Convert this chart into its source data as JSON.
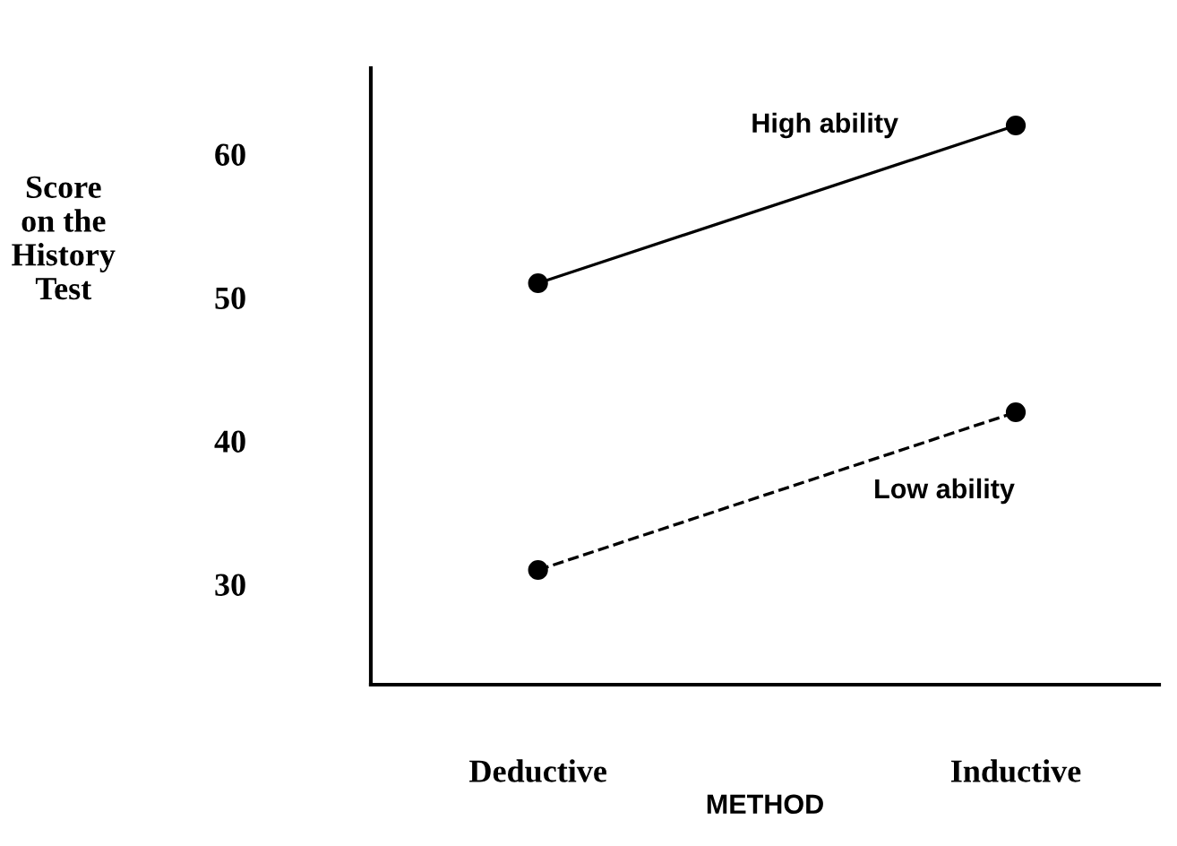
{
  "chart_data": {
    "type": "line",
    "xlabel": "METHOD",
    "ylabel": "Score\non the\nHistory\nTest",
    "categories": [
      "Deductive",
      "Inductive"
    ],
    "series": [
      {
        "name": "High ability",
        "color": "#000000",
        "values": [
          51,
          62
        ],
        "line_style": "solid"
      },
      {
        "name": "Low ability",
        "color": "#000000",
        "values": [
          31,
          42
        ],
        "line_style": "dashed"
      }
    ],
    "ylim": [
      23,
      66
    ],
    "yticks": [
      30,
      40,
      50,
      60
    ],
    "marker": "circle",
    "grid": false,
    "legend": false
  }
}
